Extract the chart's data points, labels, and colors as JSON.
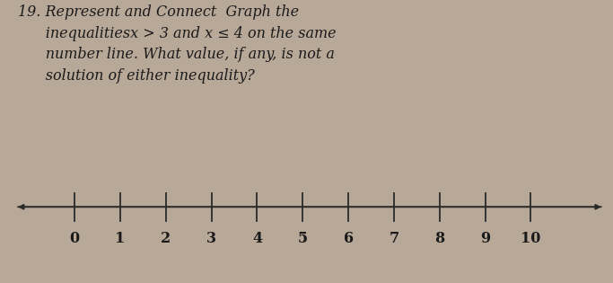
{
  "text_line1": "19. Represent and Connect  Graph the",
  "text_line2": "      inequalitiesx > 3 and x ≤ 4 on the same",
  "text_line3": "      number line. What value, if any, is not a",
  "text_line4": "      solution of either inequality?",
  "tick_values": [
    0,
    1,
    2,
    3,
    4,
    5,
    6,
    7,
    8,
    9,
    10
  ],
  "background_color": "#b8a898",
  "line_color": "#2a2a2a",
  "text_color": "#1a1a1a",
  "title_fontsize": 11.5,
  "tick_fontsize": 11.5
}
